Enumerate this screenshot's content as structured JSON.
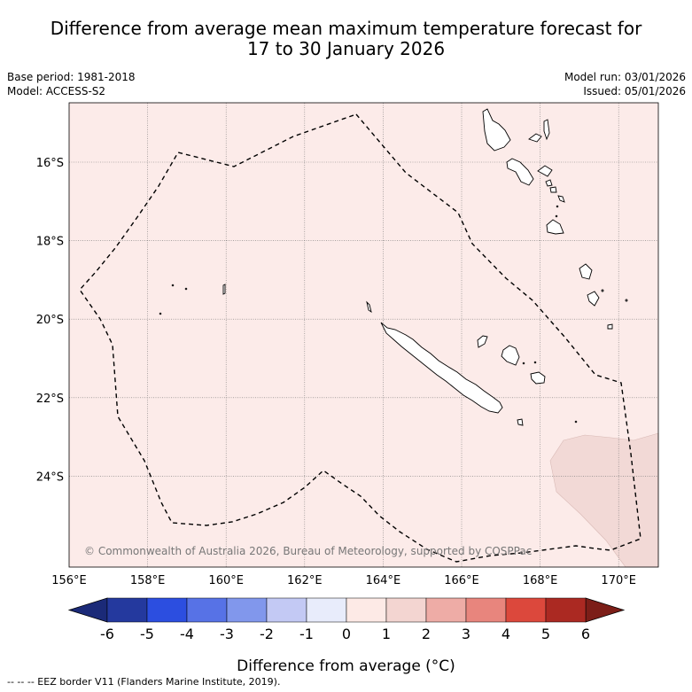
{
  "title": {
    "line1": "Difference from average mean maximum temperature forecast for",
    "line2": "17 to 30 January 2026"
  },
  "meta": {
    "base_period": "Base period: 1981-2018",
    "model": "Model: ACCESS-S2",
    "model_run": "Model run: 03/01/2026",
    "issued": "Issued: 05/01/2026"
  },
  "map": {
    "lon_range": [
      156,
      171
    ],
    "lat_range": [
      -26.2,
      -14.5
    ],
    "lon_ticks": [
      "156°E",
      "158°E",
      "160°E",
      "162°E",
      "164°E",
      "166°E",
      "168°E",
      "170°E"
    ],
    "lat_ticks": [
      "16°S",
      "18°S",
      "20°S",
      "22°S",
      "24°S"
    ],
    "background_anomaly_color": "#fcebe9",
    "warm_patch_color": "#f2d9d6",
    "copyright": "© Commonwealth of Australia 2026, Bureau of Meteorology, supported by COSPPac"
  },
  "colorbar": {
    "ticks": [
      "-6",
      "-5",
      "-4",
      "-3",
      "-2",
      "-1",
      "0",
      "1",
      "2",
      "3",
      "4",
      "5",
      "6"
    ],
    "colors": [
      "#24399e",
      "#2c4ee0",
      "#5772e6",
      "#8197ec",
      "#c3c9f4",
      "#e8ecfb",
      "#fdeae6",
      "#f3d5d1",
      "#eeaca6",
      "#e8857d",
      "#dc483c",
      "#ab2922"
    ],
    "low_extend_color": "#1b2a78",
    "high_extend_color": "#7c1e18",
    "label": "Difference from average (°C)"
  },
  "footer": {
    "legend": "-- -- -- EEZ border V11 (Flanders Marine Institute, 2019)."
  }
}
